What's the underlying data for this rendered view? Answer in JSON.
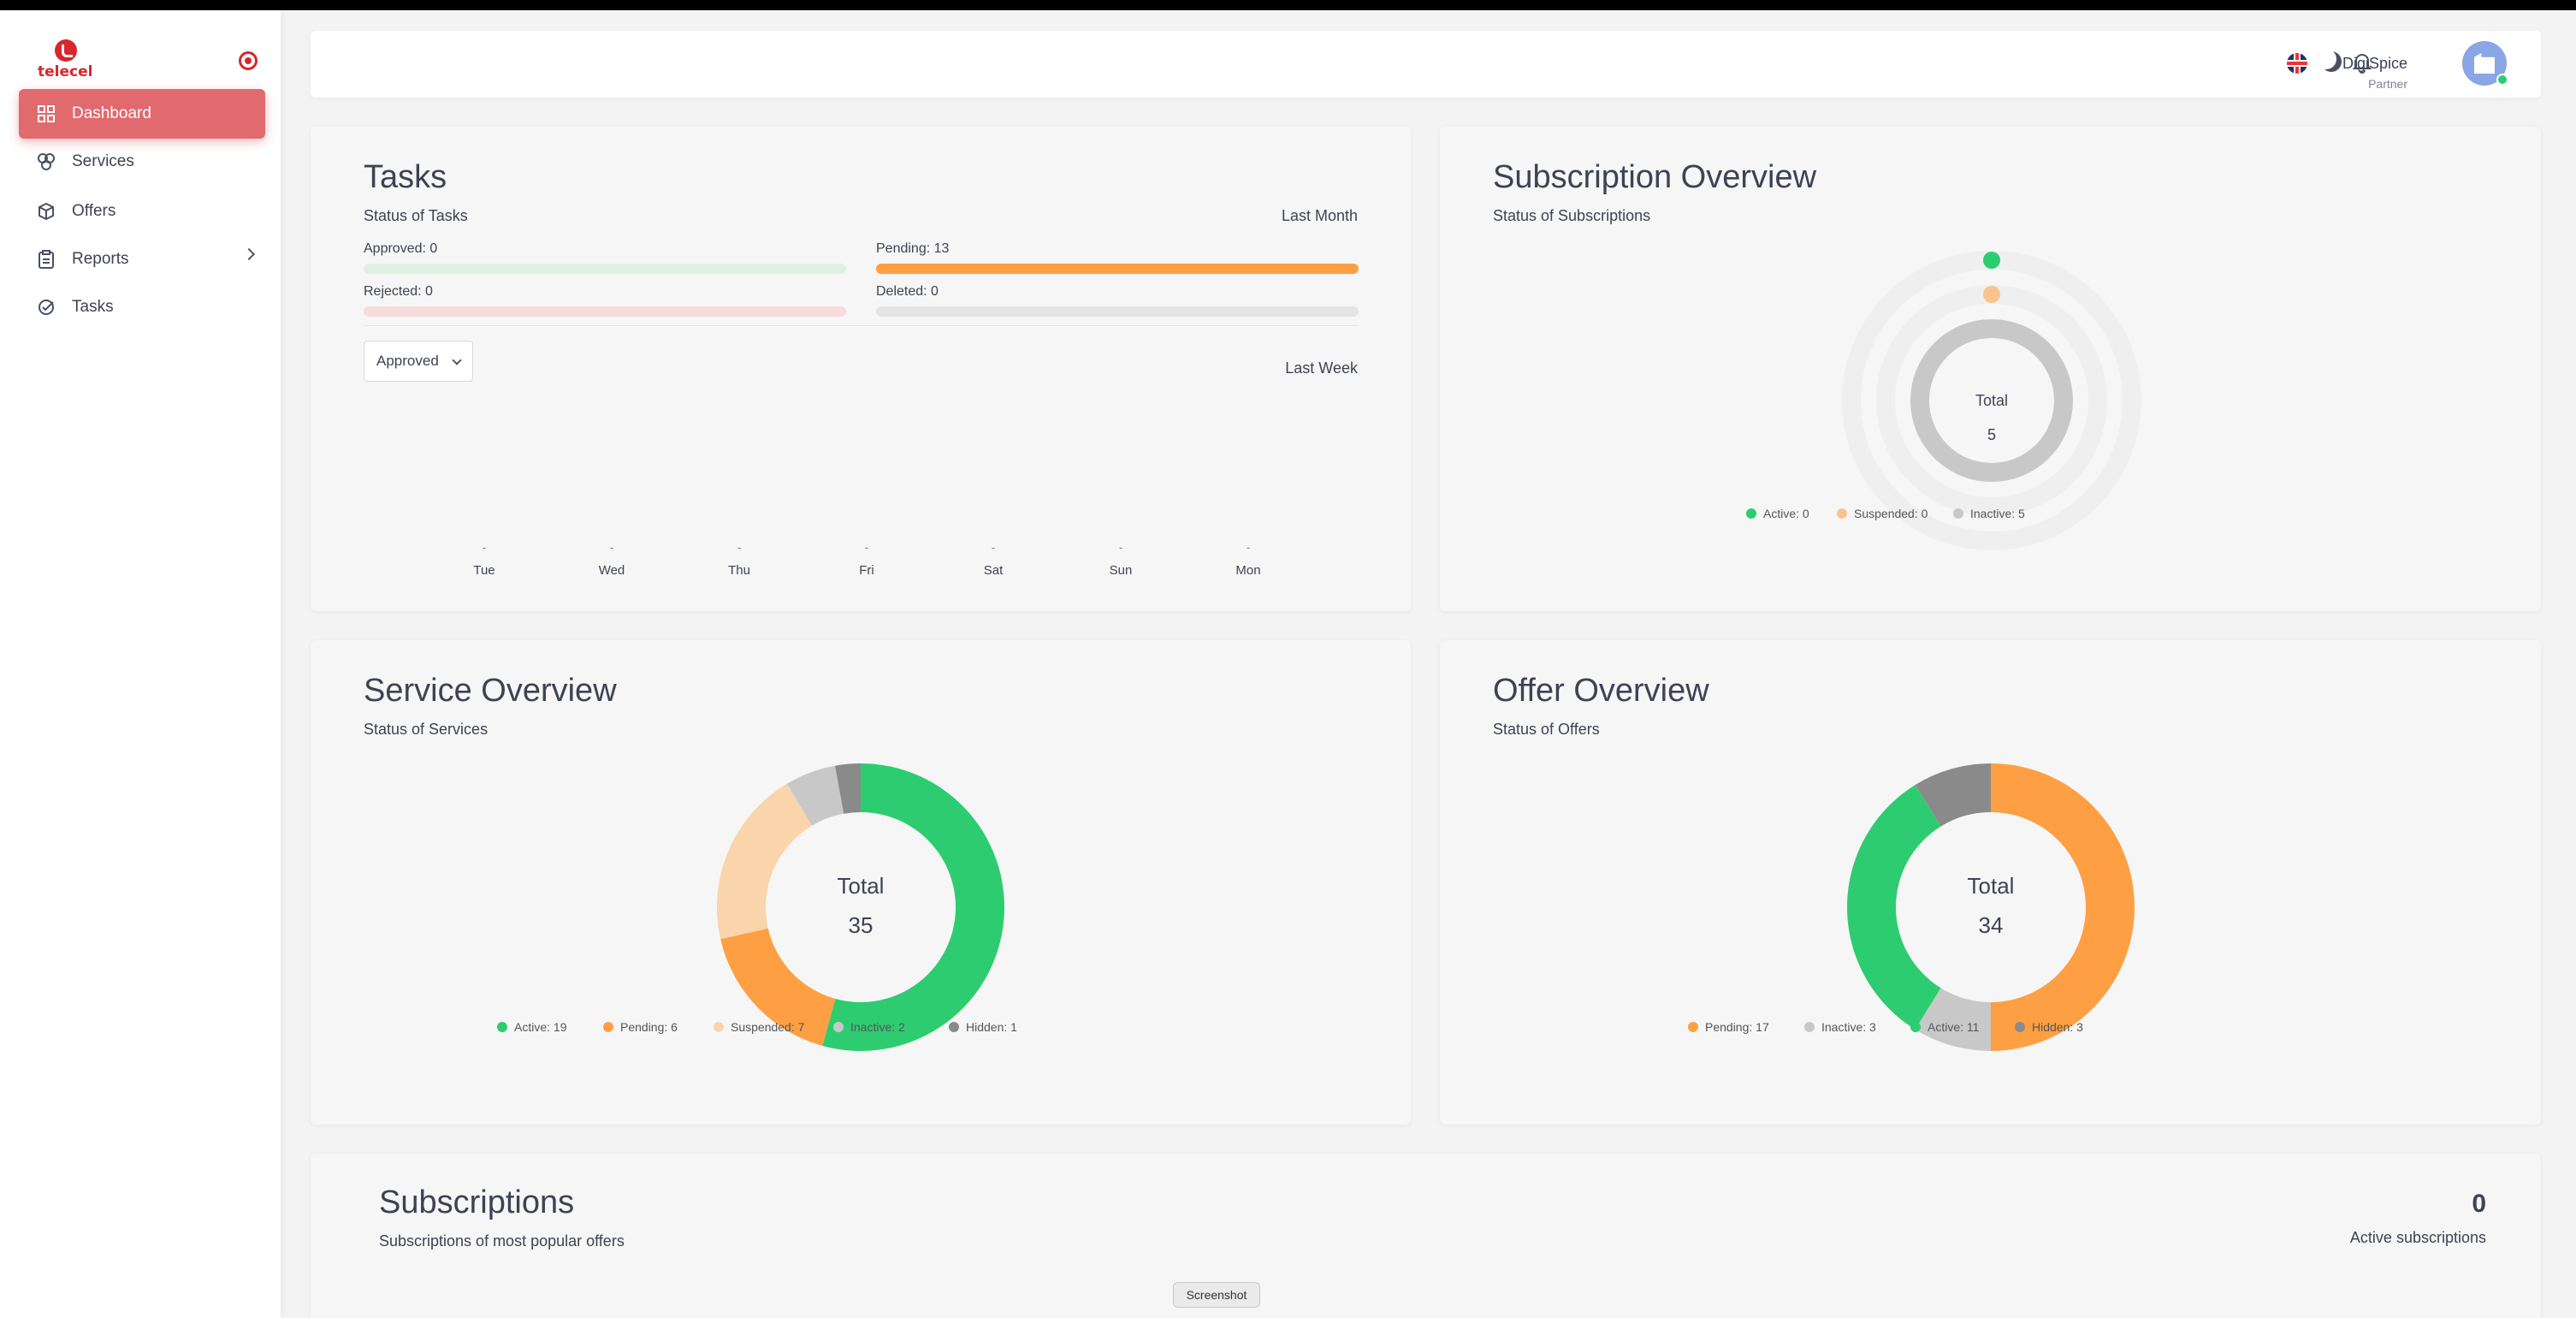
{
  "app": {
    "brand": "telecel"
  },
  "sidebar": {
    "items": [
      {
        "label": "Dashboard",
        "icon": "dashboard-icon",
        "active": true
      },
      {
        "label": "Services",
        "icon": "services-icon"
      },
      {
        "label": "Offers",
        "icon": "offers-icon"
      },
      {
        "label": "Reports",
        "icon": "reports-icon",
        "has_submenu": true
      },
      {
        "label": "Tasks",
        "icon": "tasks-icon"
      }
    ]
  },
  "header": {
    "user_name": "DigiSpice",
    "user_role": "Partner"
  },
  "tasks": {
    "title": "Tasks",
    "subtitle": "Status of Tasks",
    "period": "Last Month",
    "approved_label": "Approved: 0",
    "pending_label": "Pending: 13",
    "rejected_label": "Rejected: 0",
    "deleted_label": "Deleted: 0",
    "filter_value": "Approved",
    "week_period": "Last Week",
    "days": [
      "Tue",
      "Wed",
      "Thu",
      "Fri",
      "Sat",
      "Sun",
      "Mon"
    ],
    "day_values": [
      "-",
      "-",
      "-",
      "-",
      "-",
      "-",
      "-"
    ],
    "colors": {
      "approved": "#dff0e3",
      "pending": "#ff9f43",
      "rejected": "#f8dcdc",
      "deleted": "#e4e4e4"
    }
  },
  "subscription_overview": {
    "title": "Subscription Overview",
    "subtitle": "Status of Subscriptions",
    "total_label": "Total",
    "total": "5",
    "legend": [
      "Active: 0",
      "Suspended: 0",
      "Inactive: 5"
    ]
  },
  "service_overview": {
    "title": "Service Overview",
    "subtitle": "Status of Services",
    "total_label": "Total",
    "total": "35",
    "legend": [
      "Active: 19",
      "Pending: 6",
      "Suspended: 7",
      "Inactive: 2",
      "Hidden: 1"
    ]
  },
  "offer_overview": {
    "title": "Offer Overview",
    "subtitle": "Status of Offers",
    "total_label": "Total",
    "total": "34",
    "legend": [
      "Pending: 17",
      "Inactive: 3",
      "Active: 11",
      "Hidden: 3"
    ]
  },
  "subscriptions": {
    "title": "Subscriptions",
    "subtitle": "Subscriptions of most popular offers",
    "active_count": "0",
    "active_label": "Active subscriptions"
  },
  "tooltip": "Screenshot",
  "chart_data": [
    {
      "type": "pie",
      "categories": [
        "Active",
        "Suspended",
        "Inactive"
      ],
      "values": [
        0,
        0,
        5
      ],
      "colors": [
        "#2ecc71",
        "#f9c48c",
        "#c8c8c8"
      ]
    },
    {
      "type": "pie",
      "categories": [
        "Active",
        "Pending",
        "Suspended",
        "Inactive",
        "Hidden"
      ],
      "values": [
        19,
        6,
        7,
        2,
        1
      ],
      "colors": [
        "#2ecc71",
        "#ff9f43",
        "#fad4aa",
        "#c8c8c8",
        "#8a8a8a"
      ]
    },
    {
      "type": "pie",
      "categories": [
        "Pending",
        "Inactive",
        "Active",
        "Hidden"
      ],
      "values": [
        17,
        3,
        11,
        3
      ],
      "colors": [
        "#ff9f43",
        "#c8c8c8",
        "#2ecc71",
        "#8a8a8a"
      ]
    }
  ]
}
